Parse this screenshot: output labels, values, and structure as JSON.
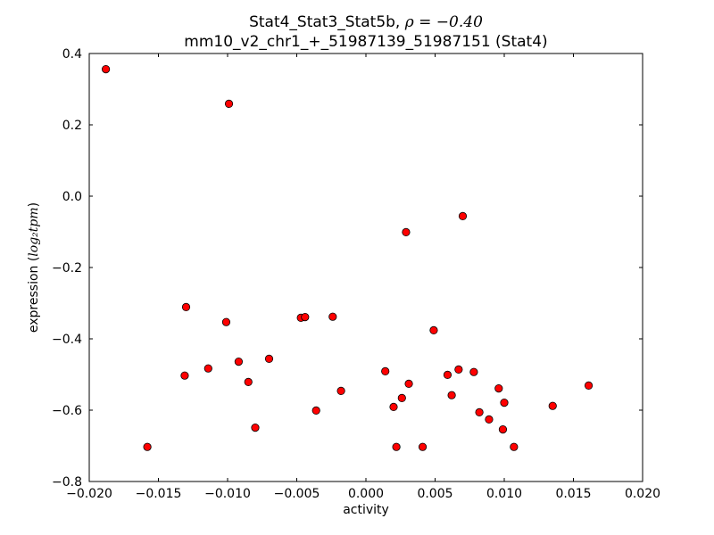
{
  "chart_data": {
    "type": "scatter",
    "title_line1": "Stat4_Stat3_Stat5b, ",
    "title_rho": "ρ = −0.40",
    "title_line2": "mm10_v2_chr1_+_51987139_51987151 (Stat4)",
    "xlabel": "activity",
    "ylabel_prefix": "expression (",
    "ylabel_math": "log₂tpm",
    "ylabel_suffix": ")",
    "xlim": [
      -0.02,
      0.02
    ],
    "ylim": [
      -0.8,
      0.4
    ],
    "xticks": [
      -0.02,
      -0.015,
      -0.01,
      -0.005,
      0.0,
      0.005,
      0.01,
      0.015,
      0.02
    ],
    "xtick_labels": [
      "−0.020",
      "−0.015",
      "−0.010",
      "−0.005",
      "0.000",
      "0.005",
      "0.010",
      "0.015",
      "0.020"
    ],
    "yticks": [
      -0.8,
      -0.6,
      -0.4,
      -0.2,
      0.0,
      0.2,
      0.4
    ],
    "ytick_labels": [
      "−0.8",
      "−0.6",
      "−0.4",
      "−0.2",
      "0.0",
      "0.2",
      "0.4"
    ],
    "grid": false,
    "marker_color": "#ff0000",
    "marker_edge": "#000000",
    "points": [
      {
        "x": -0.0188,
        "y": 0.356
      },
      {
        "x": -0.0099,
        "y": 0.259
      },
      {
        "x": -0.013,
        "y": -0.311
      },
      {
        "x": -0.0101,
        "y": -0.353
      },
      {
        "x": -0.0131,
        "y": -0.503
      },
      {
        "x": -0.0114,
        "y": -0.483
      },
      {
        "x": -0.0092,
        "y": -0.464
      },
      {
        "x": -0.0085,
        "y": -0.521
      },
      {
        "x": -0.007,
        "y": -0.456
      },
      {
        "x": -0.008,
        "y": -0.649
      },
      {
        "x": -0.0158,
        "y": -0.703
      },
      {
        "x": -0.0047,
        "y": -0.341
      },
      {
        "x": -0.0044,
        "y": -0.339
      },
      {
        "x": -0.0024,
        "y": -0.338
      },
      {
        "x": -0.0018,
        "y": -0.546
      },
      {
        "x": -0.0036,
        "y": -0.601
      },
      {
        "x": 0.0014,
        "y": -0.491
      },
      {
        "x": 0.002,
        "y": -0.591
      },
      {
        "x": 0.0026,
        "y": -0.566
      },
      {
        "x": 0.0031,
        "y": -0.526
      },
      {
        "x": 0.0022,
        "y": -0.703
      },
      {
        "x": 0.0041,
        "y": -0.703
      },
      {
        "x": 0.0029,
        "y": -0.101
      },
      {
        "x": 0.0049,
        "y": -0.376
      },
      {
        "x": 0.007,
        "y": -0.056
      },
      {
        "x": 0.0059,
        "y": -0.501
      },
      {
        "x": 0.0067,
        "y": -0.486
      },
      {
        "x": 0.0078,
        "y": -0.493
      },
      {
        "x": 0.0062,
        "y": -0.558
      },
      {
        "x": 0.0082,
        "y": -0.606
      },
      {
        "x": 0.0089,
        "y": -0.626
      },
      {
        "x": 0.0096,
        "y": -0.539
      },
      {
        "x": 0.01,
        "y": -0.579
      },
      {
        "x": 0.0099,
        "y": -0.654
      },
      {
        "x": 0.0107,
        "y": -0.703
      },
      {
        "x": 0.0135,
        "y": -0.588
      },
      {
        "x": 0.0161,
        "y": -0.531
      }
    ]
  }
}
